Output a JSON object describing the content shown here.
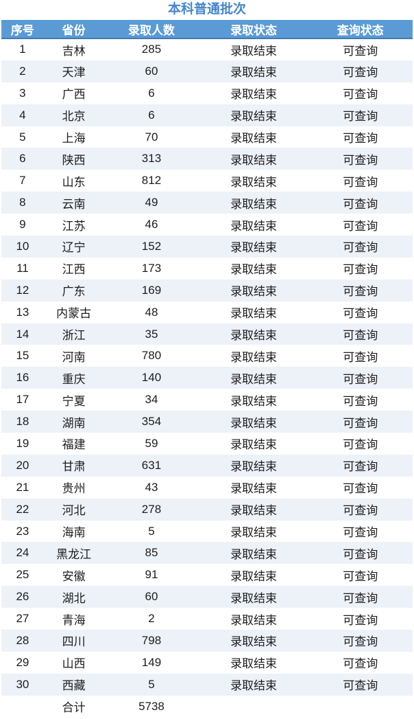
{
  "title": "本科普通批次",
  "colors": {
    "title": "#4587CC",
    "header_bg": "#5B9BD5",
    "header_border": "#4379AE",
    "row_alt_bg": "#EDF1F8"
  },
  "table": {
    "headers": [
      "序号",
      "省份",
      "录取人数",
      "录取状态",
      "查询状态"
    ],
    "rows": [
      {
        "no": "1",
        "province": "吉林",
        "count": "285",
        "status": "录取结束",
        "query": "可查询"
      },
      {
        "no": "2",
        "province": "天津",
        "count": "60",
        "status": "录取结束",
        "query": "可查询"
      },
      {
        "no": "3",
        "province": "广西",
        "count": "6",
        "status": "录取结束",
        "query": "可查询"
      },
      {
        "no": "4",
        "province": "北京",
        "count": "6",
        "status": "录取结束",
        "query": "可查询"
      },
      {
        "no": "5",
        "province": "上海",
        "count": "70",
        "status": "录取结束",
        "query": "可查询"
      },
      {
        "no": "6",
        "province": "陕西",
        "count": "313",
        "status": "录取结束",
        "query": "可查询"
      },
      {
        "no": "7",
        "province": "山东",
        "count": "812",
        "status": "录取结束",
        "query": "可查询"
      },
      {
        "no": "8",
        "province": "云南",
        "count": "49",
        "status": "录取结束",
        "query": "可查询"
      },
      {
        "no": "9",
        "province": "江苏",
        "count": "46",
        "status": "录取结束",
        "query": "可查询"
      },
      {
        "no": "10",
        "province": "辽宁",
        "count": "152",
        "status": "录取结束",
        "query": "可查询"
      },
      {
        "no": "11",
        "province": "江西",
        "count": "173",
        "status": "录取结束",
        "query": "可查询"
      },
      {
        "no": "12",
        "province": "广东",
        "count": "169",
        "status": "录取结束",
        "query": "可查询"
      },
      {
        "no": "13",
        "province": "内蒙古",
        "count": "48",
        "status": "录取结束",
        "query": "可查询"
      },
      {
        "no": "14",
        "province": "浙江",
        "count": "35",
        "status": "录取结束",
        "query": "可查询"
      },
      {
        "no": "15",
        "province": "河南",
        "count": "780",
        "status": "录取结束",
        "query": "可查询"
      },
      {
        "no": "16",
        "province": "重庆",
        "count": "140",
        "status": "录取结束",
        "query": "可查询"
      },
      {
        "no": "17",
        "province": "宁夏",
        "count": "34",
        "status": "录取结束",
        "query": "可查询"
      },
      {
        "no": "18",
        "province": "湖南",
        "count": "354",
        "status": "录取结束",
        "query": "可查询"
      },
      {
        "no": "19",
        "province": "福建",
        "count": "59",
        "status": "录取结束",
        "query": "可查询"
      },
      {
        "no": "20",
        "province": "甘肃",
        "count": "631",
        "status": "录取结束",
        "query": "可查询"
      },
      {
        "no": "21",
        "province": "贵州",
        "count": "43",
        "status": "录取结束",
        "query": "可查询"
      },
      {
        "no": "22",
        "province": "河北",
        "count": "278",
        "status": "录取结束",
        "query": "可查询"
      },
      {
        "no": "23",
        "province": "海南",
        "count": "5",
        "status": "录取结束",
        "query": "可查询"
      },
      {
        "no": "24",
        "province": "黑龙江",
        "count": "85",
        "status": "录取结束",
        "query": "可查询"
      },
      {
        "no": "25",
        "province": "安徽",
        "count": "91",
        "status": "录取结束",
        "query": "可查询"
      },
      {
        "no": "26",
        "province": "湖北",
        "count": "60",
        "status": "录取结束",
        "query": "可查询"
      },
      {
        "no": "27",
        "province": "青海",
        "count": "2",
        "status": "录取结束",
        "query": "可查询"
      },
      {
        "no": "28",
        "province": "四川",
        "count": "798",
        "status": "录取结束",
        "query": "可查询"
      },
      {
        "no": "29",
        "province": "山西",
        "count": "149",
        "status": "录取结束",
        "query": "可查询"
      },
      {
        "no": "30",
        "province": "西藏",
        "count": "5",
        "status": "录取结束",
        "query": "可查询"
      }
    ],
    "total_row": {
      "no": "",
      "province": "合计",
      "count": "5738",
      "status": "",
      "query": ""
    }
  }
}
